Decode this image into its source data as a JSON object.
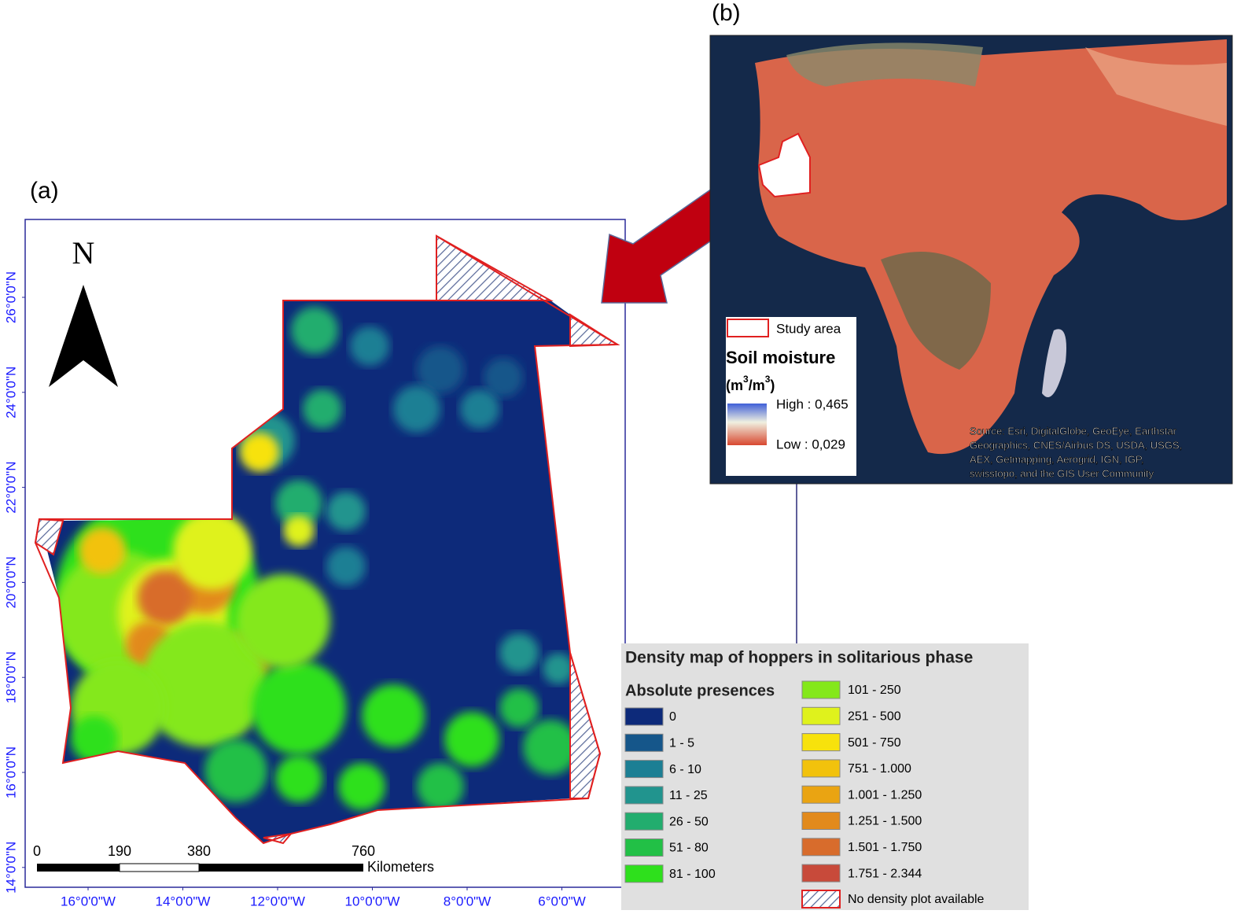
{
  "panel_a": {
    "label": "(a)",
    "north": "N",
    "lat_labels": [
      "26°0'0\"N",
      "24°0'0\"N",
      "22°0'0\"N",
      "20°0'0\"N",
      "18°0'0\"N",
      "16°0'0\"N",
      "14°0'0\"N"
    ],
    "lon_labels": [
      "16°0'0\"W",
      "14°0'0\"W",
      "12°0'0\"W",
      "10°0'0\"W",
      "8°0'0\"W",
      "6°0'0\"W"
    ],
    "scale": {
      "labels": [
        "0",
        "190",
        "380",
        "760"
      ],
      "unit": "Kilometers"
    }
  },
  "panel_b": {
    "label": "(b)",
    "study_area": "Study area",
    "soil_title": "Soil moisture",
    "soil_unit": {
      "open": "(m",
      "sup1": "3",
      "mid": "/m",
      "sup2": "3",
      "close": ")"
    },
    "high": "High : 0,465",
    "low": "Low : 0,029",
    "source": [
      "Source: Esri, DigitalGlobe, GeoEye, Earthstar",
      "Geographics, CNES/Airbus DS, USDA, USGS,",
      "AEX, Getmapping, Aerogrid, IGN, IGP,",
      "swisstopo, and the GIS User Community"
    ]
  },
  "legend": {
    "title": "Density map of hoppers in solitarious phase",
    "subtitle": "Absolute presences",
    "items": [
      {
        "label": "0",
        "color": "#0d2a7a"
      },
      {
        "label": "1 - 5",
        "color": "#15568a"
      },
      {
        "label": "6 - 10",
        "color": "#1c7f94"
      },
      {
        "label": "11 - 25",
        "color": "#21948e"
      },
      {
        "label": "26 - 50",
        "color": "#22ad6e"
      },
      {
        "label": "51 - 80",
        "color": "#22c046"
      },
      {
        "label": "81 - 100",
        "color": "#2ee01c"
      },
      {
        "label": "101 - 250",
        "color": "#84e81a"
      },
      {
        "label": "251 - 500",
        "color": "#dff21c"
      },
      {
        "label": "501 - 750",
        "color": "#f7e20c"
      },
      {
        "label": "751 - 1.000",
        "color": "#f2c20c"
      },
      {
        "label": "1.001 - 1.250",
        "color": "#eaa412"
      },
      {
        "label": "1.251 - 1.500",
        "color": "#e28a1c"
      },
      {
        "label": "1.501 - 1.750",
        "color": "#d86c2c"
      },
      {
        "label": "1.751 - 2.344",
        "color": "#c84a3a"
      }
    ],
    "no_data": "No density plot available"
  }
}
